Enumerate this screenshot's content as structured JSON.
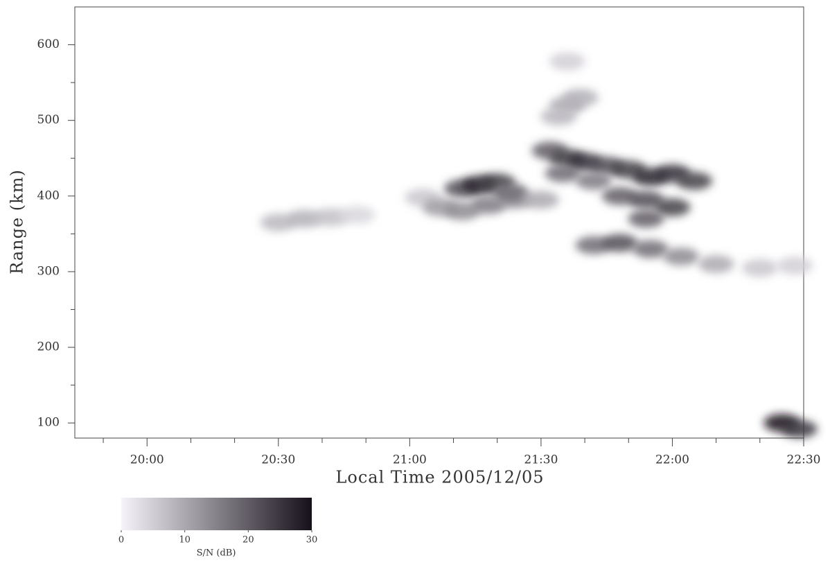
{
  "chart_data": {
    "type": "scatter",
    "xlabel": "Local Time 2005/12/05",
    "ylabel": "Range (km)",
    "xlim": [
      1183.5,
      1350
    ],
    "xticks": [
      {
        "value": 1200,
        "label": "20:00"
      },
      {
        "value": 1230,
        "label": "20:30"
      },
      {
        "value": 1260,
        "label": "21:00"
      },
      {
        "value": 1290,
        "label": "21:30"
      },
      {
        "value": 1320,
        "label": "22:00"
      },
      {
        "value": 1350,
        "label": "22:30"
      }
    ],
    "xminorticks": [
      1190,
      1210,
      1220,
      1240,
      1250,
      1270,
      1280,
      1300,
      1310,
      1330,
      1340
    ],
    "ylim": [
      80,
      650
    ],
    "yticks": [
      100,
      200,
      300,
      400,
      500,
      600
    ],
    "yminorticks": [
      150,
      250,
      350,
      450,
      550
    ],
    "x": [
      1230,
      1236,
      1242,
      1248,
      1263,
      1267,
      1272,
      1278,
      1284,
      1272,
      1276,
      1280,
      1283,
      1290,
      1292,
      1296,
      1300,
      1305,
      1310,
      1315,
      1320,
      1325,
      1295,
      1302,
      1308,
      1314,
      1320,
      1314,
      1302,
      1308,
      1315,
      1322,
      1330,
      1340,
      1348,
      1296,
      1294,
      1299,
      1296,
      1345,
      1349
    ],
    "y": [
      365,
      370,
      372,
      375,
      398,
      385,
      380,
      388,
      395,
      410,
      415,
      418,
      405,
      395,
      460,
      450,
      445,
      440,
      435,
      425,
      430,
      420,
      430,
      420,
      400,
      395,
      385,
      370,
      335,
      338,
      330,
      320,
      310,
      305,
      308,
      520,
      505,
      530,
      578,
      100,
      92
    ],
    "values": [
      8,
      9,
      7,
      4,
      6,
      12,
      14,
      16,
      13,
      22,
      28,
      24,
      18,
      10,
      20,
      24,
      26,
      22,
      24,
      27,
      26,
      24,
      18,
      16,
      20,
      22,
      24,
      20,
      18,
      22,
      18,
      14,
      10,
      6,
      5,
      10,
      8,
      9,
      5,
      30,
      25
    ],
    "colorbar": {
      "label": "S/N (dB)",
      "clim": [
        0,
        30
      ],
      "ticks": [
        0,
        10,
        20,
        30
      ],
      "low_color": "#f6f4fa",
      "high_color": "#16101a"
    }
  }
}
